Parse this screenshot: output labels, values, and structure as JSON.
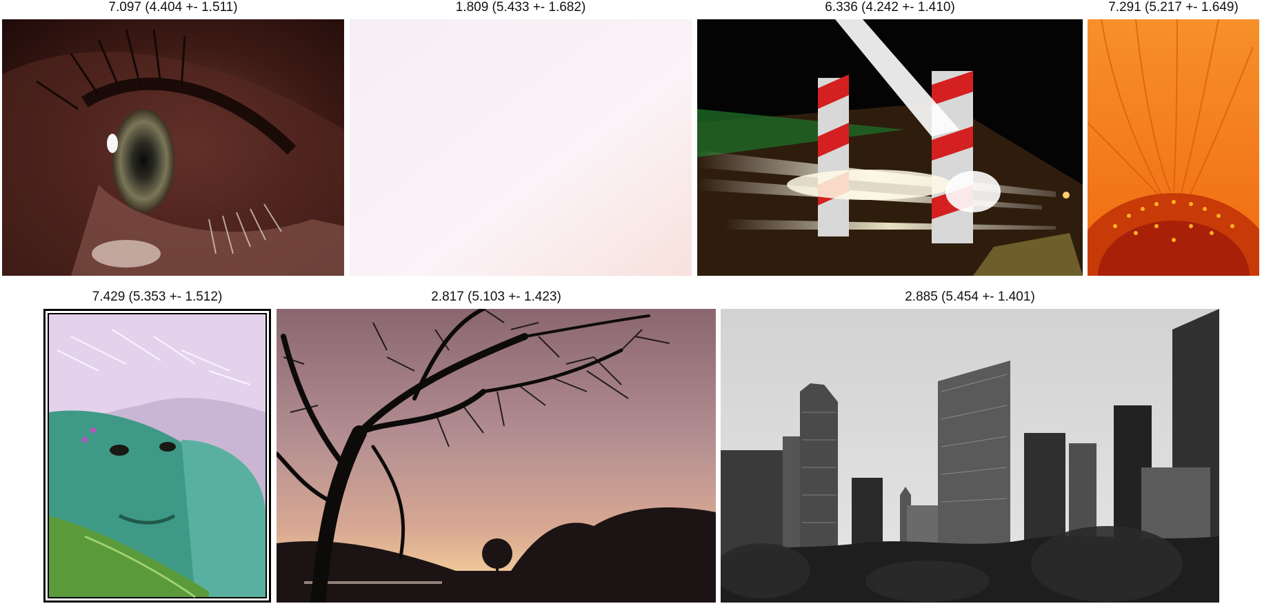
{
  "images": [
    {
      "caption": "7.097 (4.404 +- 1.511)",
      "subject": "eye closeup"
    },
    {
      "caption": "1.809 (5.433 +- 1.682)",
      "subject": "blank pale pink"
    },
    {
      "caption": "6.336 (4.242 +- 1.410)",
      "subject": "train light trails at night"
    },
    {
      "caption": "7.291 (5.217 +- 1.649)",
      "subject": "orange gerbera flower"
    },
    {
      "caption": "7.429 (5.353 +- 1.512)",
      "subject": "green painted face with feathers"
    },
    {
      "caption": "2.817 (5.103 +- 1.423)",
      "subject": "tree silhouette at dusk"
    },
    {
      "caption": "2.885 (5.454 +- 1.401)",
      "subject": "city skyline in black and white"
    }
  ],
  "colors": {
    "eye_bg": "#2a0f0c",
    "pale": "#fbf2f7",
    "night": "#050505",
    "flower_orange": "#f07818",
    "face_green": "#3d9a84",
    "dusk_pink": "#b89092",
    "sky_gray": "#e2e2e2"
  }
}
